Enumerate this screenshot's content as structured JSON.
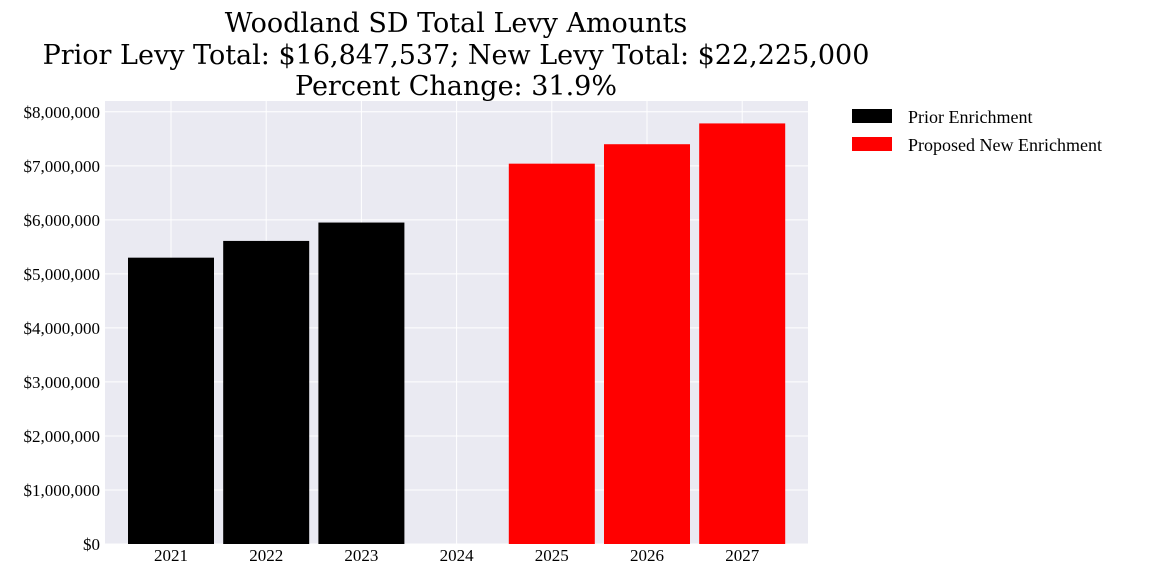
{
  "chart_data": {
    "type": "bar",
    "title_lines": [
      "Woodland SD Total Levy Amounts",
      "Prior Levy Total:  $16,847,537; New Levy Total: $22,225,000",
      "Percent Change: 31.9%"
    ],
    "categories": [
      "2021",
      "2022",
      "2023",
      "2024",
      "2025",
      "2026",
      "2027"
    ],
    "series": [
      {
        "name": "Prior Enrichment",
        "color": "#000000",
        "values": [
          5300000,
          5610000,
          5950000,
          null,
          null,
          null,
          null
        ]
      },
      {
        "name": "Proposed New Enrichment",
        "color": "#ff0000",
        "values": [
          null,
          null,
          null,
          null,
          7040000,
          7400000,
          7785000
        ]
      }
    ],
    "yticks": [
      "$0",
      "$1,000,000",
      "$2,000,000",
      "$3,000,000",
      "$4,000,000",
      "$5,000,000",
      "$6,000,000",
      "$7,000,000",
      "$8,000,000"
    ],
    "ytick_values": [
      0,
      1000000,
      2000000,
      3000000,
      4000000,
      5000000,
      6000000,
      7000000,
      8000000
    ],
    "ylim": [
      0,
      8200000
    ],
    "grid": true,
    "legend_position": "outside-top-right",
    "plot_background": "#eaeaf2"
  }
}
